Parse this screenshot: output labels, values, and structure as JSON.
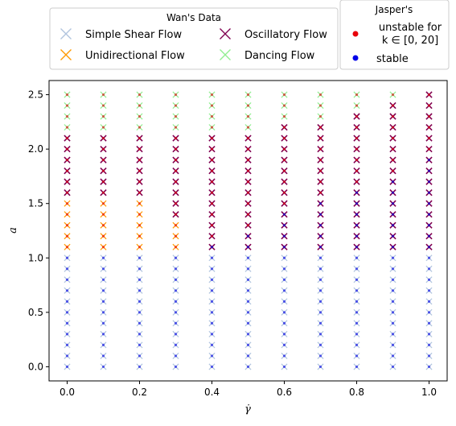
{
  "chart_data": {
    "type": "scatter",
    "xlabel": "γ̇",
    "ylabel": "a",
    "xlim": [
      -0.05,
      1.05
    ],
    "ylim": [
      -0.13,
      2.63
    ],
    "xticks": [
      "0.0",
      "0.2",
      "0.4",
      "0.6",
      "0.8",
      "1.0"
    ],
    "xtick_values": [
      0.0,
      0.2,
      0.4,
      0.6,
      0.8,
      1.0
    ],
    "yticks": [
      "0.0",
      "0.5",
      "1.0",
      "1.5",
      "2.0",
      "2.5"
    ],
    "ytick_values": [
      0.0,
      0.5,
      1.0,
      1.5,
      2.0,
      2.5
    ],
    "grid": false,
    "gamma_values": [
      0.0,
      0.1,
      0.2,
      0.3,
      0.4,
      0.5,
      0.6,
      0.7,
      0.8,
      0.9,
      1.0
    ],
    "a_values": [
      0.0,
      0.1,
      0.2,
      0.3,
      0.4,
      0.5,
      0.6,
      0.7,
      0.8,
      0.9,
      1.0,
      1.1,
      1.2,
      1.3,
      1.4,
      1.5,
      1.6,
      1.7,
      1.8,
      1.9,
      2.0,
      2.1,
      2.2,
      2.3,
      2.4,
      2.5
    ],
    "wan_legend": {
      "title": "Wan's Data",
      "placement": "top-left",
      "entries": [
        {
          "key": "simple",
          "label": "Simple Shear Flow",
          "color": "#b0c4de"
        },
        {
          "key": "oscillatory",
          "label": "Oscillatory Flow",
          "color": "#800050"
        },
        {
          "key": "unidirectional",
          "label": "Unidirectional Flow",
          "color": "#ff9900"
        },
        {
          "key": "dancing",
          "label": "Dancing Flow",
          "color": "#90ee90"
        }
      ]
    },
    "jasper_legend": {
      "title": "Jasper's",
      "placement": "top-right",
      "entries": [
        {
          "key": "unstable",
          "label_line1": "unstable for",
          "label_line2": "k ∈ [0, 20]",
          "color": "#e8000b"
        },
        {
          "key": "stable",
          "label": "stable",
          "color": "#0000e8"
        }
      ]
    },
    "wan_columns": [
      {
        "gamma": 0.0,
        "simple_max": 1.0,
        "unidirectional_max": 1.5,
        "oscillatory_max": 2.1
      },
      {
        "gamma": 0.1,
        "simple_max": 1.0,
        "unidirectional_max": 1.5,
        "oscillatory_max": 2.1
      },
      {
        "gamma": 0.2,
        "simple_max": 1.0,
        "unidirectional_max": 1.5,
        "oscillatory_max": 2.1
      },
      {
        "gamma": 0.3,
        "simple_max": 1.0,
        "unidirectional_max": 1.3,
        "oscillatory_max": 2.1
      },
      {
        "gamma": 0.4,
        "simple_max": 1.0,
        "unidirectional_max": 1.0,
        "oscillatory_max": 2.1
      },
      {
        "gamma": 0.5,
        "simple_max": 1.0,
        "unidirectional_max": 1.0,
        "oscillatory_max": 2.1
      },
      {
        "gamma": 0.6,
        "simple_max": 1.0,
        "unidirectional_max": 1.0,
        "oscillatory_max": 2.2
      },
      {
        "gamma": 0.7,
        "simple_max": 1.0,
        "unidirectional_max": 1.0,
        "oscillatory_max": 2.2
      },
      {
        "gamma": 0.8,
        "simple_max": 1.0,
        "unidirectional_max": 1.0,
        "oscillatory_max": 2.3
      },
      {
        "gamma": 0.9,
        "simple_max": 1.0,
        "unidirectional_max": 1.0,
        "oscillatory_max": 2.4
      },
      {
        "gamma": 1.0,
        "simple_max": 1.0,
        "unidirectional_max": 1.0,
        "oscillatory_max": 2.5
      }
    ],
    "jasper_columns": [
      {
        "gamma": 0.0,
        "stable_max": 1.0
      },
      {
        "gamma": 0.1,
        "stable_max": 1.0
      },
      {
        "gamma": 0.2,
        "stable_max": 1.0
      },
      {
        "gamma": 0.3,
        "stable_max": 1.0
      },
      {
        "gamma": 0.4,
        "stable_max": 1.1
      },
      {
        "gamma": 0.5,
        "stable_max": 1.2
      },
      {
        "gamma": 0.6,
        "stable_max": 1.4
      },
      {
        "gamma": 0.7,
        "stable_max": 1.5
      },
      {
        "gamma": 0.8,
        "stable_max": 1.6
      },
      {
        "gamma": 0.9,
        "stable_max": 1.7
      },
      {
        "gamma": 1.0,
        "stable_max": 1.9
      }
    ]
  }
}
